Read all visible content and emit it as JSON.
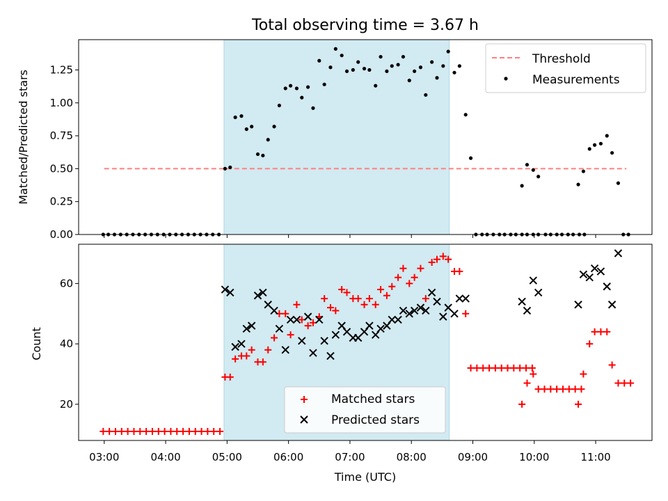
{
  "title": "Total observing time = 3.67 h",
  "colors": {
    "threshold": "#ff7f7f",
    "highlight": "#add8e6",
    "matched": "#ff0000",
    "predicted": "#000000",
    "measurement": "#000000"
  },
  "chart_data": [
    {
      "type": "scatter",
      "ylabel": "Matched/Predicted stars",
      "ylim": [
        0,
        1.48
      ],
      "yticks": [
        "0.00",
        "0.25",
        "0.50",
        "0.75",
        "1.00",
        "1.25"
      ],
      "highlight_span": [
        "04:57",
        "08:37"
      ],
      "legend": [
        "Threshold",
        "Measurements"
      ],
      "legend_position": "upper right",
      "threshold": {
        "name": "Threshold",
        "value": 0.5,
        "x_range": [
          "03:00",
          "11:30"
        ]
      },
      "measurements": {
        "name": "Measurements",
        "points": [
          [
            "02:59",
            0
          ],
          [
            "03:04",
            0
          ],
          [
            "03:10",
            0
          ],
          [
            "03:16",
            0
          ],
          [
            "03:22",
            0
          ],
          [
            "03:28",
            0
          ],
          [
            "03:34",
            0
          ],
          [
            "03:40",
            0
          ],
          [
            "03:46",
            0
          ],
          [
            "03:52",
            0
          ],
          [
            "03:58",
            0
          ],
          [
            "04:04",
            0
          ],
          [
            "04:10",
            0
          ],
          [
            "04:16",
            0
          ],
          [
            "04:22",
            0
          ],
          [
            "04:28",
            0
          ],
          [
            "04:34",
            0
          ],
          [
            "04:40",
            0
          ],
          [
            "04:46",
            0
          ],
          [
            "04:52",
            0
          ],
          [
            "04:58",
            0.5
          ],
          [
            "05:03",
            0.51
          ],
          [
            "05:08",
            0.89
          ],
          [
            "05:14",
            0.9
          ],
          [
            "05:19",
            0.8
          ],
          [
            "05:24",
            0.82
          ],
          [
            "05:30",
            0.61
          ],
          [
            "05:35",
            0.6
          ],
          [
            "05:40",
            0.72
          ],
          [
            "05:46",
            0.82
          ],
          [
            "05:51",
            0.98
          ],
          [
            "05:57",
            1.11
          ],
          [
            "06:02",
            1.13
          ],
          [
            "06:08",
            1.11
          ],
          [
            "06:13",
            1.04
          ],
          [
            "06:19",
            1.12
          ],
          [
            "06:24",
            0.96
          ],
          [
            "06:30",
            1.32
          ],
          [
            "06:35",
            1.14
          ],
          [
            "06:41",
            1.27
          ],
          [
            "06:46",
            1.41
          ],
          [
            "06:52",
            1.36
          ],
          [
            "06:57",
            1.24
          ],
          [
            "07:03",
            1.25
          ],
          [
            "07:08",
            1.31
          ],
          [
            "07:14",
            1.26
          ],
          [
            "07:19",
            1.25
          ],
          [
            "07:25",
            1.13
          ],
          [
            "07:30",
            1.35
          ],
          [
            "07:36",
            1.24
          ],
          [
            "07:41",
            1.28
          ],
          [
            "07:47",
            1.29
          ],
          [
            "07:52",
            1.35
          ],
          [
            "07:58",
            1.17
          ],
          [
            "08:03",
            1.24
          ],
          [
            "08:09",
            1.27
          ],
          [
            "08:14",
            1.06
          ],
          [
            "08:20",
            1.31
          ],
          [
            "08:25",
            1.19
          ],
          [
            "08:31",
            1.28
          ],
          [
            "08:36",
            1.39
          ],
          [
            "08:42",
            1.23
          ],
          [
            "08:47",
            1.28
          ],
          [
            "08:53",
            0.91
          ],
          [
            "08:58",
            0.58
          ],
          [
            "09:03",
            0
          ],
          [
            "09:09",
            0
          ],
          [
            "09:14",
            0
          ],
          [
            "09:20",
            0
          ],
          [
            "09:26",
            0
          ],
          [
            "09:31",
            0
          ],
          [
            "09:37",
            0
          ],
          [
            "09:42",
            0
          ],
          [
            "09:48",
            0
          ],
          [
            "09:53",
            0
          ],
          [
            "09:59",
            0
          ],
          [
            "10:04",
            0
          ],
          [
            "09:48",
            0.37
          ],
          [
            "09:53",
            0.53
          ],
          [
            "09:59",
            0.49
          ],
          [
            "10:04",
            0.44
          ],
          [
            "10:11",
            0
          ],
          [
            "10:16",
            0
          ],
          [
            "10:22",
            0
          ],
          [
            "10:27",
            0
          ],
          [
            "10:33",
            0
          ],
          [
            "10:38",
            0
          ],
          [
            "10:44",
            0
          ],
          [
            "10:49",
            0
          ],
          [
            "10:43",
            0.38
          ],
          [
            "10:48",
            0.48
          ],
          [
            "10:54",
            0.65
          ],
          [
            "10:59",
            0.68
          ],
          [
            "11:05",
            0.69
          ],
          [
            "11:11",
            0.75
          ],
          [
            "11:16",
            0.62
          ],
          [
            "11:22",
            0.39
          ],
          [
            "11:27",
            0
          ],
          [
            "11:32",
            0
          ]
        ]
      }
    },
    {
      "type": "scatter",
      "xlabel": "Time (UTC)",
      "ylabel": "Count",
      "xticks": [
        "03:00",
        "04:00",
        "05:00",
        "06:00",
        "07:00",
        "08:00",
        "09:00",
        "10:00",
        "11:00"
      ],
      "yticks": [
        "20",
        "40",
        "60"
      ],
      "ylim": [
        8,
        73
      ],
      "highlight_span": [
        "04:57",
        "08:37"
      ],
      "legend": [
        "Matched stars",
        "Predicted stars"
      ],
      "legend_position": "lower center",
      "series": [
        {
          "name": "Matched stars",
          "marker": "+",
          "points": [
            [
              "02:59",
              11
            ],
            [
              "03:05",
              11
            ],
            [
              "03:11",
              11
            ],
            [
              "03:17",
              11
            ],
            [
              "03:23",
              11
            ],
            [
              "03:29",
              11
            ],
            [
              "03:35",
              11
            ],
            [
              "03:41",
              11
            ],
            [
              "03:47",
              11
            ],
            [
              "03:53",
              11
            ],
            [
              "03:59",
              11
            ],
            [
              "04:05",
              11
            ],
            [
              "04:11",
              11
            ],
            [
              "04:17",
              11
            ],
            [
              "04:23",
              11
            ],
            [
              "04:29",
              11
            ],
            [
              "04:35",
              11
            ],
            [
              "04:41",
              11
            ],
            [
              "04:47",
              11
            ],
            [
              "04:53",
              11
            ],
            [
              "04:58",
              29
            ],
            [
              "05:03",
              29
            ],
            [
              "05:08",
              35
            ],
            [
              "05:14",
              36
            ],
            [
              "05:19",
              36
            ],
            [
              "05:24",
              38
            ],
            [
              "05:30",
              34
            ],
            [
              "05:35",
              34
            ],
            [
              "05:40",
              38
            ],
            [
              "05:46",
              42
            ],
            [
              "05:51",
              50
            ],
            [
              "05:57",
              50
            ],
            [
              "06:02",
              43
            ],
            [
              "06:08",
              53
            ],
            [
              "06:13",
              48
            ],
            [
              "06:19",
              46
            ],
            [
              "06:24",
              47
            ],
            [
              "06:30",
              49
            ],
            [
              "06:35",
              55
            ],
            [
              "06:41",
              52
            ],
            [
              "06:46",
              51
            ],
            [
              "06:52",
              58
            ],
            [
              "06:57",
              57
            ],
            [
              "07:03",
              55
            ],
            [
              "07:08",
              55
            ],
            [
              "07:14",
              53
            ],
            [
              "07:19",
              55
            ],
            [
              "07:25",
              53
            ],
            [
              "07:30",
              58
            ],
            [
              "07:36",
              56
            ],
            [
              "07:41",
              59
            ],
            [
              "07:47",
              62
            ],
            [
              "07:52",
              65
            ],
            [
              "07:58",
              60
            ],
            [
              "08:03",
              62
            ],
            [
              "08:09",
              65
            ],
            [
              "08:14",
              55
            ],
            [
              "08:20",
              67
            ],
            [
              "08:25",
              68
            ],
            [
              "08:31",
              69
            ],
            [
              "08:36",
              68
            ],
            [
              "08:42",
              64
            ],
            [
              "08:47",
              64
            ],
            [
              "08:53",
              50
            ],
            [
              "08:58",
              32
            ],
            [
              "09:04",
              32
            ],
            [
              "09:10",
              32
            ],
            [
              "09:16",
              32
            ],
            [
              "09:22",
              32
            ],
            [
              "09:28",
              32
            ],
            [
              "09:34",
              32
            ],
            [
              "09:40",
              32
            ],
            [
              "09:46",
              32
            ],
            [
              "09:52",
              32
            ],
            [
              "09:58",
              32
            ],
            [
              "09:48",
              20
            ],
            [
              "09:53",
              27
            ],
            [
              "09:59",
              30
            ],
            [
              "10:04",
              25
            ],
            [
              "10:10",
              25
            ],
            [
              "10:16",
              25
            ],
            [
              "10:22",
              25
            ],
            [
              "10:28",
              25
            ],
            [
              "10:34",
              25
            ],
            [
              "10:40",
              25
            ],
            [
              "10:46",
              25
            ],
            [
              "10:43",
              20
            ],
            [
              "10:48",
              30
            ],
            [
              "10:54",
              40
            ],
            [
              "10:59",
              44
            ],
            [
              "11:05",
              44
            ],
            [
              "11:11",
              44
            ],
            [
              "11:16",
              33
            ],
            [
              "11:22",
              27
            ],
            [
              "11:28",
              27
            ],
            [
              "11:34",
              27
            ]
          ]
        },
        {
          "name": "Predicted stars",
          "marker": "x",
          "points": [
            [
              "04:58",
              58
            ],
            [
              "05:03",
              57
            ],
            [
              "05:08",
              39
            ],
            [
              "05:14",
              40
            ],
            [
              "05:19",
              45
            ],
            [
              "05:24",
              46
            ],
            [
              "05:30",
              56
            ],
            [
              "05:35",
              57
            ],
            [
              "05:40",
              53
            ],
            [
              "05:46",
              51
            ],
            [
              "05:51",
              45
            ],
            [
              "05:57",
              38
            ],
            [
              "06:02",
              48
            ],
            [
              "06:08",
              48
            ],
            [
              "06:13",
              41
            ],
            [
              "06:19",
              49
            ],
            [
              "06:24",
              37
            ],
            [
              "06:30",
              48
            ],
            [
              "06:35",
              41
            ],
            [
              "06:41",
              36
            ],
            [
              "06:46",
              43
            ],
            [
              "06:52",
              46
            ],
            [
              "06:57",
              44
            ],
            [
              "07:03",
              42
            ],
            [
              "07:08",
              42
            ],
            [
              "07:14",
              44
            ],
            [
              "07:19",
              46
            ],
            [
              "07:25",
              43
            ],
            [
              "07:30",
              45
            ],
            [
              "07:36",
              46
            ],
            [
              "07:41",
              48
            ],
            [
              "07:47",
              48
            ],
            [
              "07:52",
              51
            ],
            [
              "07:58",
              50
            ],
            [
              "08:03",
              51
            ],
            [
              "08:09",
              52
            ],
            [
              "08:14",
              51
            ],
            [
              "08:20",
              57
            ],
            [
              "08:25",
              54
            ],
            [
              "08:31",
              49
            ],
            [
              "08:36",
              52
            ],
            [
              "08:42",
              50
            ],
            [
              "08:47",
              55
            ],
            [
              "08:53",
              55
            ],
            [
              "09:48",
              54
            ],
            [
              "09:53",
              51
            ],
            [
              "09:59",
              61
            ],
            [
              "10:04",
              57
            ],
            [
              "10:43",
              53
            ],
            [
              "10:48",
              63
            ],
            [
              "10:54",
              62
            ],
            [
              "10:59",
              65
            ],
            [
              "11:05",
              64
            ],
            [
              "11:11",
              59
            ],
            [
              "11:16",
              53
            ],
            [
              "11:22",
              70
            ]
          ]
        }
      ]
    }
  ]
}
